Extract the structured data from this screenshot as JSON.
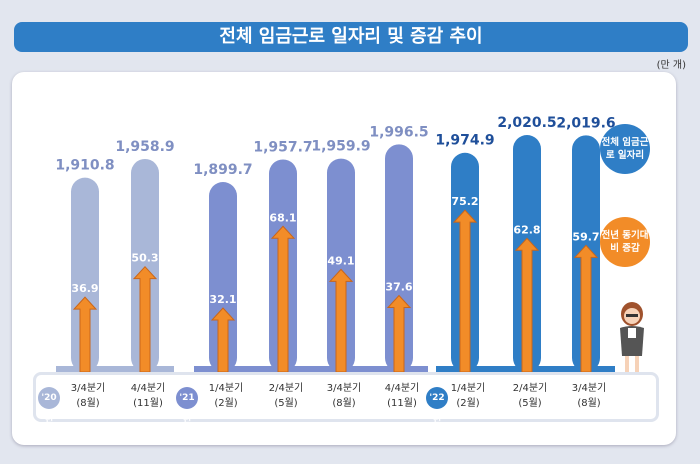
{
  "title": "전체 임금근로 일자리 및 증감 추이",
  "unit": "(만 개)",
  "legend": {
    "total": "전체 임금근로 일자리",
    "change": "전년 동기대비 증감"
  },
  "colors": {
    "2020": "#a9b7d8",
    "2021": "#8b9bd3",
    "2022": "#2f7ec6",
    "arrow": "#f28c28"
  },
  "chart_data": {
    "type": "bar",
    "years": [
      {
        "label": "'20년",
        "color": "#a9b7d8"
      },
      {
        "label": "'21년",
        "color": "#7d8fd0"
      },
      {
        "label": "'22년",
        "color": "#2f7ec6"
      }
    ],
    "categories": [
      {
        "year": 0,
        "q": "3/4분기",
        "m": "(8월)"
      },
      {
        "year": 0,
        "q": "4/4분기",
        "m": "(11월)"
      },
      {
        "year": 1,
        "q": "1/4분기",
        "m": "(2월)"
      },
      {
        "year": 1,
        "q": "2/4분기",
        "m": "(5월)"
      },
      {
        "year": 1,
        "q": "3/4분기",
        "m": "(8월)"
      },
      {
        "year": 1,
        "q": "4/4분기",
        "m": "(11월)"
      },
      {
        "year": 2,
        "q": "1/4분기",
        "m": "(2월)"
      },
      {
        "year": 2,
        "q": "2/4분기",
        "m": "(5월)"
      },
      {
        "year": 2,
        "q": "3/4분기",
        "m": "(8월)"
      }
    ],
    "series": [
      {
        "name": "전체 임금근로 일자리",
        "values": [
          "1,910.8",
          "1,958.9",
          "1,899.7",
          "1,957.7",
          "1,959.9",
          "1,996.5",
          "1,974.9",
          "2,020.5",
          "2,019.6"
        ]
      },
      {
        "name": "전년 동기대비 증감",
        "values": [
          "36.9",
          "50.3",
          "32.1",
          "68.1",
          "49.1",
          "37.6",
          "75.2",
          "62.8",
          "59.7"
        ]
      }
    ]
  }
}
